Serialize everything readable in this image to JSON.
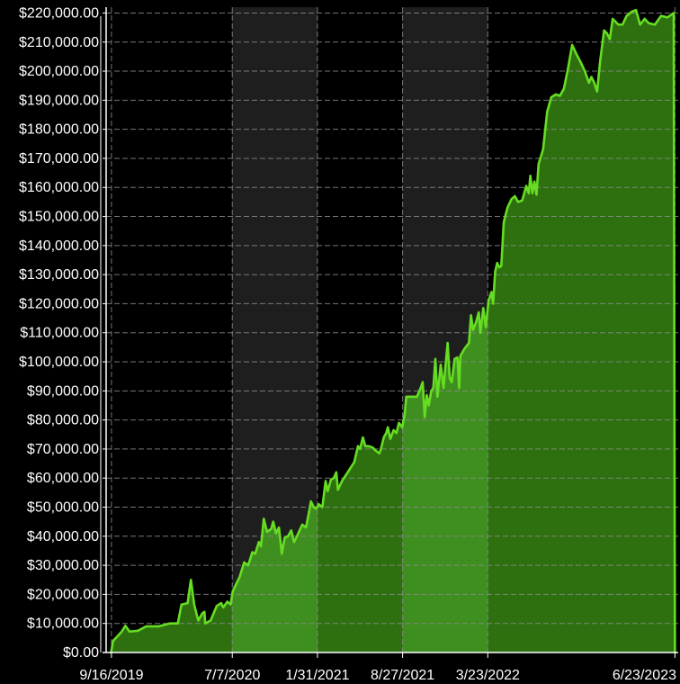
{
  "chart_data": {
    "type": "area",
    "title": "",
    "xlabel": "",
    "ylabel": "",
    "ylim": [
      0,
      222000
    ],
    "xlim": [
      "2019-09-03",
      "2023-07-01"
    ],
    "y_ticks": [
      0,
      10000,
      20000,
      30000,
      40000,
      50000,
      60000,
      70000,
      80000,
      90000,
      100000,
      110000,
      120000,
      130000,
      140000,
      150000,
      160000,
      170000,
      180000,
      190000,
      200000,
      210000,
      220000
    ],
    "y_tick_labels": [
      "$0.00",
      "$10,000.00",
      "$20,000.00",
      "$30,000.00",
      "$40,000.00",
      "$50,000.00",
      "$60,000.00",
      "$70,000.00",
      "$80,000.00",
      "$90,000.00",
      "$100,000.00",
      "$110,000.00",
      "$120,000.00",
      "$130,000.00",
      "$140,000.00",
      "$150,000.00",
      "$160,000.00",
      "$170,000.00",
      "$180,000.00",
      "$190,000.00",
      "$200,000.00",
      "$210,000.00",
      "$220,000.00"
    ],
    "x_ticks": [
      "2019-09-16",
      "2020-07-07",
      "2021-01-31",
      "2021-08-27",
      "2022-03-23",
      "2023-06-23"
    ],
    "x_tick_labels": [
      "9/16/2019",
      "7/7/2020",
      "1/31/2021",
      "8/27/2021",
      "3/23/2022",
      "6/23/2023"
    ],
    "grid": true,
    "shaded_bands": [
      {
        "start": "2020-07-07",
        "end": "2021-01-31"
      },
      {
        "start": "2021-08-27",
        "end": "2022-03-23"
      }
    ],
    "colors": {
      "background": "#000000",
      "band": "#1e1e1e",
      "line": "#66dd22",
      "fill": "#2e7010",
      "fill_in_band": "#3f8f20",
      "grid": "#8a8a8a",
      "text": "#ffffff"
    },
    "series": [
      {
        "points": [
          [
            "2019-09-15",
            0
          ],
          [
            "2019-09-20",
            4000
          ],
          [
            "2019-10-10",
            7000
          ],
          [
            "2019-10-20",
            9200
          ],
          [
            "2019-10-30",
            7200
          ],
          [
            "2019-11-20",
            7500
          ],
          [
            "2019-12-10",
            9000
          ],
          [
            "2020-01-10",
            9000
          ],
          [
            "2020-02-05",
            10000
          ],
          [
            "2020-02-25",
            10000
          ],
          [
            "2020-03-05",
            16500
          ],
          [
            "2020-03-20",
            17000
          ],
          [
            "2020-03-28",
            25000
          ],
          [
            "2020-04-05",
            16500
          ],
          [
            "2020-04-15",
            11000
          ],
          [
            "2020-04-25",
            13500
          ],
          [
            "2020-04-30",
            14000
          ],
          [
            "2020-05-02",
            10000
          ],
          [
            "2020-05-15",
            11000
          ],
          [
            "2020-05-30",
            16000
          ],
          [
            "2020-06-10",
            17000
          ],
          [
            "2020-06-15",
            15500
          ],
          [
            "2020-06-25",
            17500
          ],
          [
            "2020-07-03",
            16500
          ],
          [
            "2020-07-08",
            21000
          ],
          [
            "2020-07-25",
            26000
          ],
          [
            "2020-08-05",
            31000
          ],
          [
            "2020-08-15",
            30000
          ],
          [
            "2020-08-25",
            34500
          ],
          [
            "2020-09-01",
            34000
          ],
          [
            "2020-09-10",
            38000
          ],
          [
            "2020-09-15",
            36500
          ],
          [
            "2020-09-22",
            46000
          ],
          [
            "2020-09-30",
            41500
          ],
          [
            "2020-10-10",
            42500
          ],
          [
            "2020-10-15",
            45000
          ],
          [
            "2020-10-22",
            41000
          ],
          [
            "2020-10-29",
            43000
          ],
          [
            "2020-11-05",
            34000
          ],
          [
            "2020-11-12",
            39500
          ],
          [
            "2020-11-20",
            40000
          ],
          [
            "2020-11-28",
            42000
          ],
          [
            "2020-12-05",
            38000
          ],
          [
            "2020-12-12",
            40000
          ],
          [
            "2020-12-25",
            44000
          ],
          [
            "2021-01-03",
            43000
          ],
          [
            "2021-01-10",
            48000
          ],
          [
            "2021-01-15",
            52000
          ],
          [
            "2021-01-22",
            50000
          ],
          [
            "2021-01-28",
            49500
          ],
          [
            "2021-02-03",
            51000
          ],
          [
            "2021-02-12",
            50000
          ],
          [
            "2021-02-20",
            59000
          ],
          [
            "2021-02-25",
            55500
          ],
          [
            "2021-03-05",
            59500
          ],
          [
            "2021-03-12",
            60000
          ],
          [
            "2021-03-18",
            62000
          ],
          [
            "2021-03-22",
            56000
          ],
          [
            "2021-04-01",
            59000
          ],
          [
            "2021-04-15",
            62000
          ],
          [
            "2021-05-01",
            65500
          ],
          [
            "2021-05-10",
            71000
          ],
          [
            "2021-05-15",
            70000
          ],
          [
            "2021-05-22",
            74000
          ],
          [
            "2021-05-28",
            71000
          ],
          [
            "2021-06-05",
            71000
          ],
          [
            "2021-06-15",
            70500
          ],
          [
            "2021-06-22",
            69500
          ],
          [
            "2021-07-01",
            68500
          ],
          [
            "2021-07-05",
            70000
          ],
          [
            "2021-07-12",
            74000
          ],
          [
            "2021-07-18",
            75500
          ],
          [
            "2021-07-22",
            77500
          ],
          [
            "2021-07-28",
            73500
          ],
          [
            "2021-08-05",
            76500
          ],
          [
            "2021-08-12",
            75500
          ],
          [
            "2021-08-18",
            79000
          ],
          [
            "2021-08-26",
            77500
          ],
          [
            "2021-09-01",
            82000
          ],
          [
            "2021-09-05",
            88000
          ],
          [
            "2021-09-25",
            88000
          ],
          [
            "2021-10-01",
            88000
          ],
          [
            "2021-10-10",
            91000
          ],
          [
            "2021-10-15",
            93000
          ],
          [
            "2021-10-20",
            81000
          ],
          [
            "2021-10-25",
            88500
          ],
          [
            "2021-10-30",
            85000
          ],
          [
            "2021-11-05",
            90000
          ],
          [
            "2021-11-10",
            91000
          ],
          [
            "2021-11-15",
            101000
          ],
          [
            "2021-11-20",
            88000
          ],
          [
            "2021-11-28",
            99000
          ],
          [
            "2021-12-05",
            91000
          ],
          [
            "2021-12-10",
            99000
          ],
          [
            "2021-12-15",
            106500
          ],
          [
            "2021-12-20",
            94500
          ],
          [
            "2021-12-25",
            93000
          ],
          [
            "2022-01-01",
            101000
          ],
          [
            "2022-01-08",
            101500
          ],
          [
            "2022-01-12",
            91000
          ],
          [
            "2022-01-15",
            102000
          ],
          [
            "2022-01-25",
            104500
          ],
          [
            "2022-02-05",
            106500
          ],
          [
            "2022-02-10",
            116000
          ],
          [
            "2022-02-15",
            111000
          ],
          [
            "2022-02-22",
            113500
          ],
          [
            "2022-03-01",
            117000
          ],
          [
            "2022-03-05",
            110000
          ],
          [
            "2022-03-12",
            118500
          ],
          [
            "2022-03-18",
            112000
          ],
          [
            "2022-03-25",
            121000
          ],
          [
            "2022-04-01",
            124000
          ],
          [
            "2022-04-05",
            120000
          ],
          [
            "2022-04-10",
            131000
          ],
          [
            "2022-04-15",
            134000
          ],
          [
            "2022-04-20",
            132500
          ],
          [
            "2022-04-25",
            133000
          ],
          [
            "2022-05-01",
            148000
          ],
          [
            "2022-05-10",
            153000
          ],
          [
            "2022-05-20",
            156000
          ],
          [
            "2022-05-28",
            157000
          ],
          [
            "2022-06-05",
            155000
          ],
          [
            "2022-06-15",
            155500
          ],
          [
            "2022-06-25",
            160500
          ],
          [
            "2022-07-01",
            158000
          ],
          [
            "2022-07-05",
            164000
          ],
          [
            "2022-07-10",
            158000
          ],
          [
            "2022-07-15",
            162000
          ],
          [
            "2022-07-20",
            157500
          ],
          [
            "2022-07-25",
            168000
          ],
          [
            "2022-08-05",
            173000
          ],
          [
            "2022-08-15",
            186000
          ],
          [
            "2022-08-25",
            191000
          ],
          [
            "2022-09-05",
            192000
          ],
          [
            "2022-09-15",
            191500
          ],
          [
            "2022-09-25",
            194000
          ],
          [
            "2022-10-05",
            201000
          ],
          [
            "2022-10-15",
            209000
          ],
          [
            "2022-10-25",
            206000
          ],
          [
            "2022-11-05",
            203000
          ],
          [
            "2022-11-15",
            200000
          ],
          [
            "2022-11-25",
            196000
          ],
          [
            "2022-12-01",
            198000
          ],
          [
            "2022-12-08",
            196000
          ],
          [
            "2022-12-15",
            193000
          ],
          [
            "2022-12-22",
            203000
          ],
          [
            "2023-01-01",
            214000
          ],
          [
            "2023-01-08",
            213000
          ],
          [
            "2023-01-15",
            211000
          ],
          [
            "2023-01-22",
            218000
          ],
          [
            "2023-02-05",
            216000
          ],
          [
            "2023-02-15",
            216000
          ],
          [
            "2023-02-25",
            219000
          ],
          [
            "2023-03-10",
            220500
          ],
          [
            "2023-03-20",
            221000
          ],
          [
            "2023-03-30",
            216000
          ],
          [
            "2023-04-10",
            218000
          ],
          [
            "2023-04-20",
            216500
          ],
          [
            "2023-05-05",
            216000
          ],
          [
            "2023-05-20",
            219000
          ],
          [
            "2023-06-05",
            218500
          ],
          [
            "2023-06-20",
            220000
          ],
          [
            "2023-06-23",
            0
          ]
        ]
      }
    ]
  }
}
